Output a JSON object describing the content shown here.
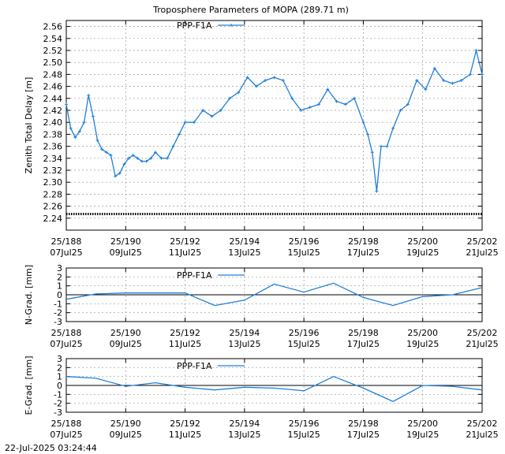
{
  "chart_data": [
    {
      "id": "ztd",
      "type": "line",
      "title": "Troposphere Parameters of MOPA (289.71 m)",
      "ylabel": "Zenith Total Delay [m]",
      "ylim": [
        2.22,
        2.57
      ],
      "yticks": [
        2.24,
        2.26,
        2.28,
        2.3,
        2.32,
        2.34,
        2.36,
        2.38,
        2.4,
        2.42,
        2.44,
        2.46,
        2.48,
        2.5,
        2.52,
        2.54,
        2.56
      ],
      "yformat": 2,
      "xlim": [
        188,
        202
      ],
      "grid": true,
      "legend_position": "top-left",
      "series": [
        {
          "name": "PPP-F1A",
          "color": "#1f7fd6",
          "marker": "plus",
          "x": [
            188.0,
            188.15,
            188.3,
            188.45,
            188.6,
            188.75,
            188.9,
            189.05,
            189.2,
            189.35,
            189.5,
            189.65,
            189.8,
            189.95,
            190.1,
            190.25,
            190.4,
            190.55,
            190.7,
            190.85,
            191.0,
            191.2,
            191.4,
            191.6,
            191.8,
            192.0,
            192.3,
            192.6,
            192.9,
            193.2,
            193.5,
            193.8,
            194.1,
            194.4,
            194.7,
            195.0,
            195.3,
            195.6,
            195.9,
            196.2,
            196.5,
            196.8,
            197.1,
            197.4,
            197.7,
            198.0,
            198.15,
            198.3,
            198.45,
            198.6,
            198.8,
            199.0,
            199.25,
            199.5,
            199.8,
            200.1,
            200.4,
            200.7,
            201.0,
            201.3,
            201.6,
            201.8,
            202.0
          ],
          "y": [
            2.43,
            2.39,
            2.375,
            2.385,
            2.4,
            2.445,
            2.41,
            2.37,
            2.355,
            2.35,
            2.345,
            2.31,
            2.315,
            2.33,
            2.34,
            2.345,
            2.34,
            2.335,
            2.335,
            2.34,
            2.35,
            2.34,
            2.34,
            2.36,
            2.38,
            2.4,
            2.4,
            2.42,
            2.41,
            2.42,
            2.44,
            2.45,
            2.475,
            2.46,
            2.47,
            2.475,
            2.47,
            2.44,
            2.42,
            2.425,
            2.43,
            2.455,
            2.435,
            2.43,
            2.44,
            2.4,
            2.38,
            2.35,
            2.285,
            2.36,
            2.36,
            2.39,
            2.42,
            2.43,
            2.47,
            2.455,
            2.49,
            2.47,
            2.465,
            2.47,
            2.48,
            2.52,
            2.48
          ]
        },
        {
          "name": "",
          "color": "#000000",
          "marker": "dot",
          "x": [
            188,
            202
          ],
          "y": [
            2.247,
            2.247
          ]
        }
      ]
    },
    {
      "id": "ngrad",
      "type": "line",
      "ylabel": "N-Grad. [mm]",
      "ylim": [
        -3,
        3
      ],
      "yticks": [
        -3,
        -2,
        -1,
        0,
        1,
        2,
        3
      ],
      "yformat": 0,
      "xlim": [
        188,
        202
      ],
      "grid": true,
      "zero_line": true,
      "legend_position": "top-left",
      "series": [
        {
          "name": "PPP-F1A",
          "color": "#1f7fd6",
          "x": [
            188,
            189,
            190,
            191,
            192,
            193,
            194,
            195,
            196,
            197,
            198,
            199,
            200,
            201,
            202
          ],
          "y": [
            -0.5,
            0.1,
            0.2,
            0.2,
            0.2,
            -1.2,
            -0.6,
            1.2,
            0.3,
            1.3,
            -0.3,
            -1.2,
            -0.2,
            0.0,
            0.8
          ]
        }
      ]
    },
    {
      "id": "egrad",
      "type": "line",
      "ylabel": "E-Grad. [mm]",
      "ylim": [
        -3,
        3
      ],
      "yticks": [
        -3,
        -2,
        -1,
        0,
        1,
        2,
        3
      ],
      "yformat": 0,
      "xlim": [
        188,
        202
      ],
      "grid": true,
      "zero_line": true,
      "legend_position": "top-left",
      "series": [
        {
          "name": "PPP-F1A",
          "color": "#1f7fd6",
          "x": [
            188,
            189,
            190,
            191,
            192,
            193,
            194,
            195,
            196,
            197,
            198,
            199,
            200,
            201,
            202
          ],
          "y": [
            1.0,
            0.8,
            -0.1,
            0.3,
            -0.2,
            -0.5,
            -0.2,
            -0.3,
            -0.6,
            1.0,
            -0.3,
            -1.8,
            0.0,
            -0.1,
            -0.5
          ]
        }
      ]
    }
  ],
  "x_ticks": [
    {
      "doy": 188,
      "top": "25/188",
      "bottom": "07Jul25"
    },
    {
      "doy": 190,
      "top": "25/190",
      "bottom": "09Jul25"
    },
    {
      "doy": 192,
      "top": "25/192",
      "bottom": "11Jul25"
    },
    {
      "doy": 194,
      "top": "25/194",
      "bottom": "13Jul25"
    },
    {
      "doy": 196,
      "top": "25/196",
      "bottom": "15Jul25"
    },
    {
      "doy": 198,
      "top": "25/198",
      "bottom": "17Jul25"
    },
    {
      "doy": 200,
      "top": "25/200",
      "bottom": "19Jul25"
    },
    {
      "doy": 202,
      "top": "25/202",
      "bottom": "21Jul25"
    }
  ],
  "footer": {
    "timestamp": "22-Jul-2025 03:24:44"
  }
}
